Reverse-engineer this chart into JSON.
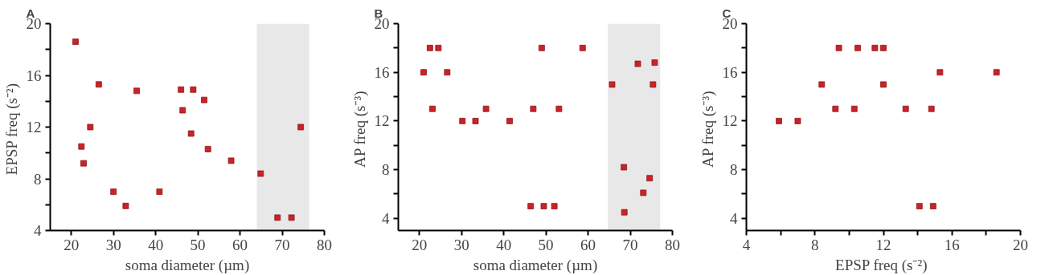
{
  "chart_data": [
    {
      "type": "scatter",
      "title": "A",
      "xlabel": "soma diameter (µm)",
      "ylabel": "EPSP  freq (s⁻²)",
      "marker": "square",
      "grid": false,
      "xlim": [
        15,
        80
      ],
      "ylim": [
        4,
        20
      ],
      "xticks": [
        20,
        30,
        40,
        50,
        60,
        70,
        80
      ],
      "yticks": [
        4,
        {
          "value": 6,
          "label": null
        },
        8,
        {
          "value": 10,
          "label": null
        },
        12,
        {
          "value": 14,
          "label": null
        },
        16,
        {
          "value": 18,
          "label": null
        },
        20
      ],
      "bands": [
        {
          "axis": "x",
          "from": 64.0,
          "to": 76.4,
          "color": "#e8e8e8"
        }
      ],
      "series": [
        {
          "color": "#cc2127",
          "x": [
            21.0,
            26.5,
            35.5,
            46.0,
            48.9,
            51.5,
            46.4,
            24.5,
            48.4,
            22.4,
            52.4,
            22.9,
            57.9,
            64.9,
            30.0,
            40.9,
            32.9,
            68.9,
            72.2,
            74.4
          ],
          "values": [
            18.6,
            15.3,
            14.8,
            14.9,
            14.9,
            14.1,
            13.3,
            12.0,
            11.5,
            10.5,
            10.3,
            9.2,
            9.4,
            8.4,
            7.0,
            7.0,
            5.9,
            5.0,
            5.0,
            12.0
          ]
        }
      ]
    },
    {
      "type": "scatter",
      "title": "B",
      "xlabel": "soma diameter (µm)",
      "ylabel": "AP  freq (s⁻³)",
      "marker": "square",
      "grid": false,
      "xlim": [
        15,
        80
      ],
      "ylim": [
        3,
        20
      ],
      "xticks": [
        20,
        30,
        40,
        50,
        60,
        70,
        80
      ],
      "yticks": [
        4,
        {
          "value": 6,
          "label": null
        },
        8,
        {
          "value": 10,
          "label": null
        },
        12,
        {
          "value": 14,
          "label": null
        },
        16,
        {
          "value": 18,
          "label": null
        },
        20
      ],
      "bands": [
        {
          "axis": "x",
          "from": 64.7,
          "to": 77.1,
          "color": "#e8e8e8"
        }
      ],
      "series": [
        {
          "color": "#cc2127",
          "x": [
            21.0,
            22.5,
            24.5,
            23.1,
            26.6,
            30.2,
            33.3,
            35.8,
            41.4,
            46.4,
            47.0,
            49.0,
            49.5,
            52.0,
            53.1,
            58.7,
            65.7,
            68.5,
            68.6,
            71.8,
            73.1,
            74.6,
            75.4,
            75.8
          ],
          "values": [
            16.0,
            18.0,
            18.0,
            13.0,
            16.0,
            12.0,
            12.0,
            13.0,
            12.0,
            5.0,
            13.0,
            18.0,
            5.0,
            5.0,
            13.0,
            18.0,
            15.0,
            8.2,
            4.5,
            16.7,
            6.1,
            7.3,
            15.0,
            16.8
          ]
        }
      ]
    },
    {
      "type": "scatter",
      "title": "C",
      "xlabel": "EPSP freq  (s⁻²)",
      "ylabel": "AP  freq (s⁻³)",
      "marker": "square",
      "grid": false,
      "xlim": [
        4,
        20
      ],
      "ylim": [
        3,
        20
      ],
      "xticks": [
        4,
        {
          "value": 6,
          "label": null
        },
        8,
        {
          "value": 10,
          "label": null
        },
        12,
        {
          "value": 14,
          "label": null
        },
        16,
        {
          "value": 18,
          "label": null
        },
        20
      ],
      "yticks": [
        4,
        {
          "value": 6,
          "label": null
        },
        8,
        {
          "value": 10,
          "label": null
        },
        12,
        {
          "value": 14,
          "label": null
        },
        16,
        {
          "value": 18,
          "label": null
        },
        20
      ],
      "series": [
        {
          "color": "#cc2127",
          "x": [
            5.9,
            7.0,
            8.4,
            9.2,
            9.4,
            10.3,
            10.5,
            11.5,
            12.0,
            12.0,
            13.3,
            14.1,
            14.8,
            14.9,
            15.3,
            18.6
          ],
          "values": [
            12.0,
            12.0,
            15.0,
            13.0,
            18.0,
            13.0,
            18.0,
            18.0,
            18.0,
            15.0,
            13.0,
            5.0,
            13.0,
            5.0,
            16.0,
            16.0
          ]
        }
      ]
    }
  ]
}
